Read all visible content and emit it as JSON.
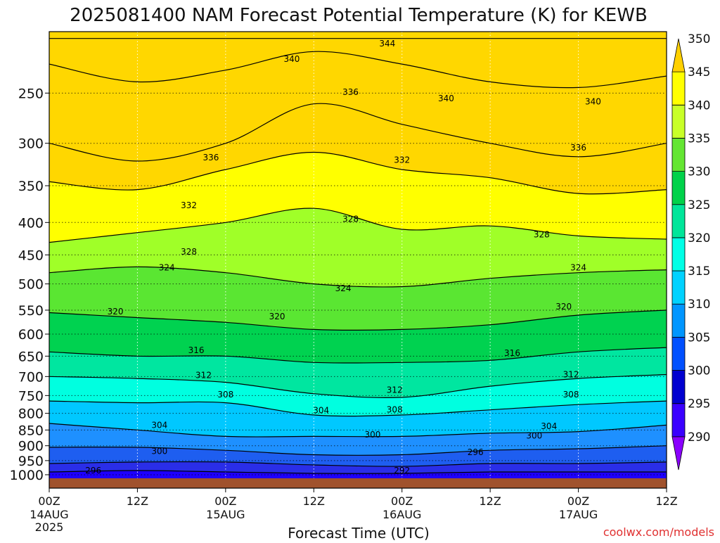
{
  "title": "2025081400 NAM Forecast Potential Temperature (K) for KEWB",
  "xlabel": "Forecast Time (UTC)",
  "credit": "coolwx.com/models",
  "colors": {
    "ground": "#a0522d",
    "band_fills": [
      "#1e00ff",
      "#2a2ee8",
      "#1e5ef0",
      "#1e90ff",
      "#00c8ff",
      "#00ffe0",
      "#00e6a0",
      "#00d250",
      "#5ae632",
      "#a0ff28",
      "#ffff00",
      "#ffd700"
    ],
    "colorbar_bands": [
      "#8a00ff",
      "#3a00ff",
      "#0000d0",
      "#0050ff",
      "#0096ff",
      "#00d2ff",
      "#00ffe6",
      "#00e69a",
      "#00d24a",
      "#64e632",
      "#c8ff28",
      "#ffff00",
      "#ffd000"
    ]
  },
  "chart_data": {
    "type": "heatmap",
    "title": "2025081400 NAM Forecast Potential Temperature (K) for KEWB",
    "xlabel": "Forecast Time (UTC)",
    "ylabel": "",
    "x_ticks": [
      {
        "hour": 0,
        "label": "00Z",
        "sub": "14AUG",
        "sub2": "2025"
      },
      {
        "hour": 12,
        "label": "12Z",
        "sub": "",
        "sub2": ""
      },
      {
        "hour": 24,
        "label": "00Z",
        "sub": "15AUG",
        "sub2": ""
      },
      {
        "hour": 36,
        "label": "12Z",
        "sub": "",
        "sub2": ""
      },
      {
        "hour": 48,
        "label": "00Z",
        "sub": "16AUG",
        "sub2": ""
      },
      {
        "hour": 60,
        "label": "12Z",
        "sub": "",
        "sub2": ""
      },
      {
        "hour": 72,
        "label": "00Z",
        "sub": "17AUG",
        "sub2": ""
      },
      {
        "hour": 84,
        "label": "12Z",
        "sub": "",
        "sub2": ""
      }
    ],
    "xlim": [
      0,
      84
    ],
    "y_ticks": [
      250,
      300,
      350,
      400,
      450,
      500,
      550,
      600,
      650,
      700,
      750,
      800,
      850,
      900,
      950,
      1000
    ],
    "ylim": [
      200,
      1013
    ],
    "colorbar": {
      "levels": [
        290,
        295,
        300,
        305,
        310,
        315,
        320,
        325,
        330,
        335,
        340,
        345,
        350
      ],
      "labels": [
        "290",
        "295",
        "300",
        "305",
        "310",
        "315",
        "320",
        "325",
        "330",
        "335",
        "340",
        "345",
        "350"
      ]
    },
    "profile_hours": [
      0,
      12,
      24,
      36,
      48,
      60,
      72,
      84
    ],
    "isentrope_levels": [
      292,
      296,
      300,
      304,
      308,
      312,
      316,
      320,
      324,
      328,
      332,
      336,
      340,
      344
    ],
    "isentrope_pressure_hPa": [
      [
        990,
        985,
        990,
        995,
        995,
        990,
        990,
        990
      ],
      [
        960,
        955,
        955,
        965,
        970,
        960,
        960,
        955
      ],
      [
        905,
        905,
        915,
        930,
        930,
        915,
        910,
        900
      ],
      [
        830,
        850,
        870,
        870,
        870,
        860,
        855,
        835
      ],
      [
        765,
        770,
        770,
        805,
        805,
        790,
        775,
        765
      ],
      [
        700,
        705,
        715,
        745,
        755,
        725,
        705,
        695
      ],
      [
        640,
        650,
        650,
        665,
        665,
        660,
        640,
        630
      ],
      [
        555,
        565,
        575,
        590,
        590,
        580,
        560,
        550
      ],
      [
        480,
        470,
        480,
        500,
        505,
        490,
        480,
        475
      ],
      [
        430,
        415,
        400,
        380,
        410,
        405,
        420,
        425
      ],
      [
        345,
        355,
        330,
        310,
        330,
        340,
        360,
        355
      ],
      [
        300,
        320,
        300,
        260,
        280,
        300,
        315,
        300
      ],
      [
        225,
        240,
        230,
        215,
        225,
        240,
        245,
        235
      ],
      [
        205,
        205,
        205,
        205,
        205,
        205,
        205,
        205
      ]
    ],
    "isentrope_labels": [
      {
        "level": 292,
        "hour": 48,
        "p": 985
      },
      {
        "level": 296,
        "hour": 6,
        "p": 985
      },
      {
        "level": 296,
        "hour": 58,
        "p": 922
      },
      {
        "level": 300,
        "hour": 15,
        "p": 918
      },
      {
        "level": 300,
        "hour": 44,
        "p": 865
      },
      {
        "level": 300,
        "hour": 66,
        "p": 868
      },
      {
        "level": 304,
        "hour": 15,
        "p": 835
      },
      {
        "level": 304,
        "hour": 37,
        "p": 792
      },
      {
        "level": 304,
        "hour": 68,
        "p": 838
      },
      {
        "level": 308,
        "hour": 24,
        "p": 747
      },
      {
        "level": 308,
        "hour": 47,
        "p": 790
      },
      {
        "level": 308,
        "hour": 71,
        "p": 747
      },
      {
        "level": 312,
        "hour": 21,
        "p": 697
      },
      {
        "level": 312,
        "hour": 47,
        "p": 735
      },
      {
        "level": 312,
        "hour": 71,
        "p": 695
      },
      {
        "level": 316,
        "hour": 20,
        "p": 636
      },
      {
        "level": 316,
        "hour": 63,
        "p": 643
      },
      {
        "level": 320,
        "hour": 9,
        "p": 553
      },
      {
        "level": 320,
        "hour": 31,
        "p": 563
      },
      {
        "level": 320,
        "hour": 70,
        "p": 543
      },
      {
        "level": 324,
        "hour": 16,
        "p": 471
      },
      {
        "level": 324,
        "hour": 40,
        "p": 508
      },
      {
        "level": 324,
        "hour": 72,
        "p": 471
      },
      {
        "level": 328,
        "hour": 19,
        "p": 445
      },
      {
        "level": 328,
        "hour": 41,
        "p": 395
      },
      {
        "level": 328,
        "hour": 67,
        "p": 418
      },
      {
        "level": 332,
        "hour": 19,
        "p": 376
      },
      {
        "level": 332,
        "hour": 48,
        "p": 319
      },
      {
        "level": 336,
        "hour": 22,
        "p": 316
      },
      {
        "level": 336,
        "hour": 41,
        "p": 249
      },
      {
        "level": 336,
        "hour": 72,
        "p": 305
      },
      {
        "level": 340,
        "hour": 33,
        "p": 221
      },
      {
        "level": 340,
        "hour": 54,
        "p": 255
      },
      {
        "level": 340,
        "hour": 74,
        "p": 258
      },
      {
        "level": 344,
        "hour": 46,
        "p": 209
      }
    ]
  }
}
